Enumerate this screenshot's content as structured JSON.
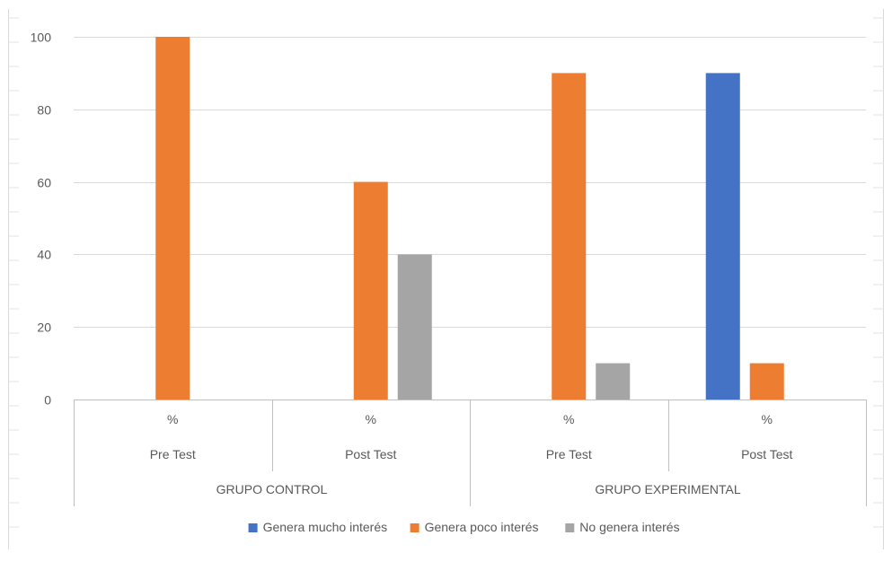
{
  "chart_data": {
    "type": "bar",
    "ylim": [
      0,
      100
    ],
    "yticks": [
      "0",
      "20",
      "40",
      "60",
      "80",
      "100"
    ],
    "grid": true,
    "legend_position": "bottom",
    "groups": [
      {
        "label": "GRUPO CONTROL",
        "categories": [
          {
            "label": "Pre Test",
            "sublabel": "%"
          },
          {
            "label": "Post Test",
            "sublabel": "%"
          }
        ]
      },
      {
        "label": "GRUPO EXPERIMENTAL",
        "categories": [
          {
            "label": "Pre Test",
            "sublabel": "%"
          },
          {
            "label": "Post Test",
            "sublabel": "%"
          }
        ]
      }
    ],
    "series": [
      {
        "name": "Genera mucho interés",
        "color": "#4472C4",
        "values": [
          0,
          0,
          0,
          90
        ]
      },
      {
        "name": "Genera poco interés",
        "color": "#ED7D31",
        "values": [
          100,
          60,
          90,
          10
        ]
      },
      {
        "name": "No genera interés",
        "color": "#A5A5A5",
        "values": [
          0,
          40,
          10,
          0
        ]
      }
    ]
  }
}
